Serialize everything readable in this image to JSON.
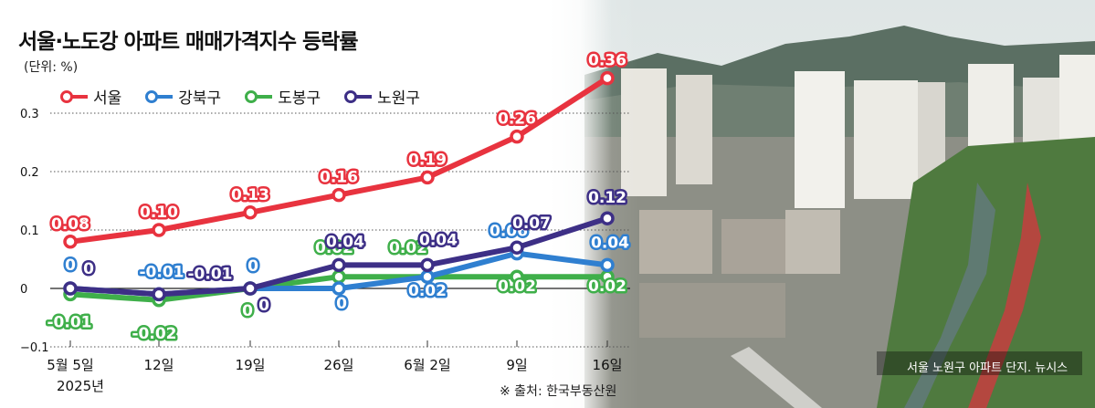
{
  "chart_data": {
    "type": "line",
    "title": "서울·노도강 아파트 매매가격지수 등락률",
    "unit_label": "(단위: %)",
    "categories": [
      "5월 5일",
      "12일",
      "19일",
      "26일",
      "6월 2일",
      "9일",
      "16일"
    ],
    "year_label": "2025년",
    "y_ticks": [
      0.3,
      0.2,
      0.1,
      0,
      -0.1
    ],
    "y_tick_labels": [
      "0.3",
      "0.2",
      "0.1",
      "0",
      "−0.1"
    ],
    "ylim": [
      -0.1,
      0.36
    ],
    "grid": true,
    "legend_position": "top-left",
    "series": [
      {
        "name": "서울",
        "color": "#e8333f",
        "values": [
          0.08,
          0.1,
          0.13,
          0.16,
          0.19,
          0.26,
          0.36
        ],
        "labels": [
          "0.08",
          "0.10",
          "0.13",
          "0.16",
          "0.19",
          "0.26",
          "0.36"
        ]
      },
      {
        "name": "강북구",
        "color": "#2f7fd0",
        "values": [
          0,
          -0.01,
          0,
          0,
          0.02,
          0.06,
          0.04
        ],
        "labels": [
          "0",
          "-0.01",
          "0",
          "0",
          "0.02",
          "0.06",
          "0.04"
        ]
      },
      {
        "name": "도봉구",
        "color": "#3faf4a",
        "values": [
          -0.01,
          -0.02,
          0,
          0.02,
          0.02,
          0.02,
          0.02
        ],
        "labels": [
          "-0.01",
          "-0.02",
          "0",
          "0.02",
          "0.02",
          "0.02",
          "0.02"
        ]
      },
      {
        "name": "노원구",
        "color": "#3d2f86",
        "values": [
          0,
          -0.01,
          0,
          0.04,
          0.04,
          0.07,
          0.12
        ],
        "labels": [
          "0",
          "-0.01",
          "0",
          "0.04",
          "0.04",
          "0.07",
          "0.12"
        ]
      }
    ],
    "source": "※ 출처: 한국부동산원"
  },
  "photo_credit": "서울 노원구 아파트 단지. 뉴시스"
}
